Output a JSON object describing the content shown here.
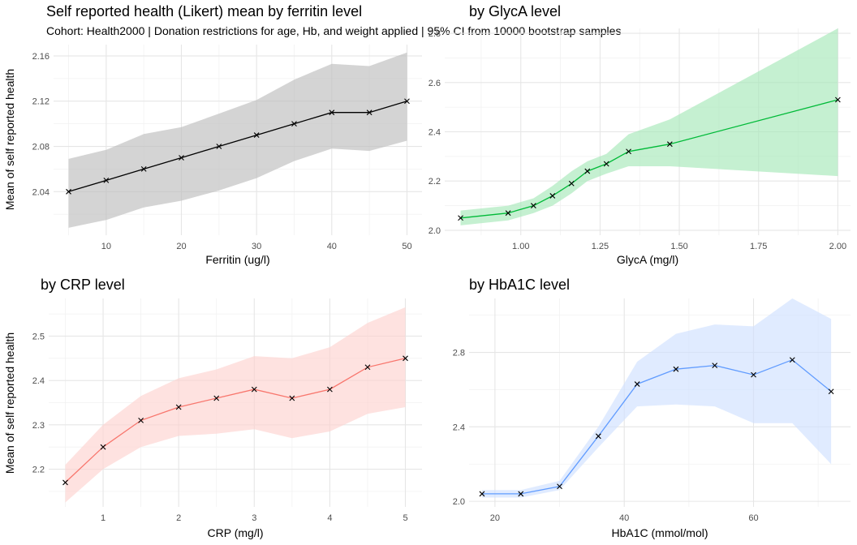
{
  "figure": {
    "title": "Self reported health (Likert) mean by ferritin level",
    "subtitle": "Cohort: Health2000 | Donation restrictions for age, Hb, and weight applied | 95% CI from 10000 bootstrap samples"
  },
  "chart_data": [
    {
      "type": "line",
      "title": "",
      "xlabel": "Ferritin (ug/l)",
      "ylabel": "Mean of self reported health",
      "xlim": [
        3,
        52
      ],
      "ylim": [
        2.0015,
        2.17
      ],
      "xticks": [
        10,
        20,
        30,
        40,
        50
      ],
      "yticks": [
        2.04,
        2.08,
        2.12,
        2.16
      ],
      "xtick_labels": [
        "10",
        "20",
        "30",
        "40",
        "50"
      ],
      "ytick_labels": [
        "2.04",
        "2.08",
        "2.12",
        "2.16"
      ],
      "grid": true,
      "line_color": "#000000",
      "ribbon_color": "#bdbdbd",
      "x": [
        5,
        10,
        15,
        20,
        25,
        30,
        35,
        40,
        45,
        50
      ],
      "y": [
        2.04,
        2.05,
        2.06,
        2.07,
        2.08,
        2.09,
        2.1,
        2.11,
        2.11,
        2.12
      ],
      "lower": [
        2.008,
        2.015,
        2.026,
        2.032,
        2.041,
        2.052,
        2.067,
        2.078,
        2.076,
        2.085
      ],
      "upper": [
        2.069,
        2.077,
        2.091,
        2.097,
        2.109,
        2.121,
        2.139,
        2.153,
        2.151,
        2.163
      ]
    },
    {
      "type": "line",
      "title": "by GlycA level",
      "xlabel": "GlycA (mg/l)",
      "ylabel": "",
      "xlim": [
        0.76,
        2.04
      ],
      "ylim": [
        1.98,
        2.82
      ],
      "xticks": [
        1.0,
        1.25,
        1.5,
        1.75,
        2.0
      ],
      "yticks": [
        2.0,
        2.2,
        2.4,
        2.6,
        2.8
      ],
      "xtick_labels": [
        "1.00",
        "1.25",
        "1.50",
        "1.75",
        "2.00"
      ],
      "ytick_labels": [
        "2.0",
        "2.2",
        "2.4",
        "2.6",
        "2.8"
      ],
      "grid": true,
      "line_color": "#00ba38",
      "ribbon_color": "#a6e8b8",
      "x": [
        0.81,
        0.96,
        1.04,
        1.1,
        1.16,
        1.21,
        1.27,
        1.34,
        1.47,
        2.0
      ],
      "y": [
        2.05,
        2.07,
        2.1,
        2.14,
        2.19,
        2.24,
        2.27,
        2.32,
        2.35,
        2.53
      ],
      "lower": [
        2.02,
        2.04,
        2.07,
        2.1,
        2.15,
        2.2,
        2.23,
        2.26,
        2.26,
        2.22
      ],
      "upper": [
        2.08,
        2.1,
        2.13,
        2.18,
        2.24,
        2.28,
        2.31,
        2.39,
        2.45,
        2.82
      ]
    },
    {
      "type": "line",
      "title": "by CRP level",
      "xlabel": "CRP (mg/l)",
      "ylabel": "Mean of self reported health",
      "xlim": [
        0.28,
        5.22
      ],
      "ylim": [
        2.115,
        2.585
      ],
      "xticks": [
        1,
        2,
        3,
        4,
        5
      ],
      "yticks": [
        2.2,
        2.3,
        2.4,
        2.5
      ],
      "xtick_labels": [
        "1",
        "2",
        "3",
        "4",
        "5"
      ],
      "ytick_labels": [
        "2.2",
        "2.3",
        "2.4",
        "2.5"
      ],
      "grid": true,
      "line_color": "#f8766d",
      "ribbon_color": "#fdd3d0",
      "x": [
        0.5,
        1.0,
        1.5,
        2.0,
        2.5,
        3.0,
        3.5,
        4.0,
        4.5,
        5.0
      ],
      "y": [
        2.17,
        2.25,
        2.31,
        2.34,
        2.36,
        2.38,
        2.36,
        2.38,
        2.43,
        2.45
      ],
      "lower": [
        2.125,
        2.2,
        2.25,
        2.275,
        2.28,
        2.29,
        2.27,
        2.285,
        2.325,
        2.34
      ],
      "upper": [
        2.21,
        2.3,
        2.365,
        2.405,
        2.425,
        2.455,
        2.45,
        2.475,
        2.53,
        2.565
      ]
    },
    {
      "type": "line",
      "title": "by HbA1C level",
      "xlabel": "HbA1C (mmol/mol)",
      "ylabel": "",
      "xlim": [
        16,
        75
      ],
      "ylim": [
        1.97,
        3.09
      ],
      "xticks": [
        20,
        40,
        60
      ],
      "yticks": [
        2.0,
        2.4,
        2.8
      ],
      "xtick_labels": [
        "20",
        "40",
        "60"
      ],
      "ytick_labels": [
        "2.0",
        "2.4",
        "2.8"
      ],
      "grid": true,
      "line_color": "#619cff",
      "ribbon_color": "#cfe0ff",
      "x": [
        18,
        24,
        30,
        36,
        42,
        48,
        54,
        60,
        66,
        72
      ],
      "y": [
        2.04,
        2.04,
        2.08,
        2.35,
        2.63,
        2.71,
        2.73,
        2.68,
        2.76,
        2.59
      ],
      "lower": [
        2.02,
        2.02,
        2.06,
        2.29,
        2.51,
        2.52,
        2.51,
        2.42,
        2.42,
        2.2
      ],
      "upper": [
        2.06,
        2.06,
        2.11,
        2.4,
        2.75,
        2.9,
        2.95,
        2.94,
        3.09,
        2.98
      ]
    }
  ]
}
